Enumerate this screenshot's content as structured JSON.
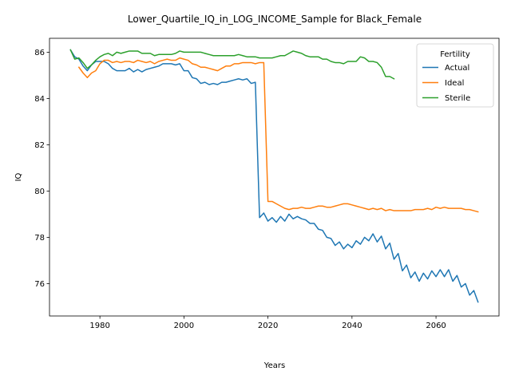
{
  "chart_data": {
    "type": "line",
    "title": "Lower_Quartile_IQ_in_LOG_INCOME_Sample for Black_Female",
    "xlabel": "Years",
    "ylabel": "IQ",
    "xlim": [
      1968,
      2075
    ],
    "ylim": [
      74.6,
      86.6
    ],
    "xticks": [
      1980,
      2000,
      2020,
      2040,
      2060
    ],
    "yticks": [
      76,
      78,
      80,
      82,
      84,
      86
    ],
    "grid": false,
    "legend": {
      "title": "Fertility",
      "placement": "top-right"
    },
    "series": [
      {
        "name": "Actual",
        "color": "#1f77b4",
        "x": [
          1973,
          1974,
          1975,
          1976,
          1977,
          1978,
          1979,
          1980,
          1981,
          1982,
          1983,
          1984,
          1985,
          1986,
          1987,
          1988,
          1989,
          1990,
          1991,
          1992,
          1993,
          1994,
          1995,
          1996,
          1997,
          1998,
          1999,
          2000,
          2001,
          2002,
          2003,
          2004,
          2005,
          2006,
          2007,
          2008,
          2009,
          2010,
          2011,
          2012,
          2013,
          2014,
          2015,
          2016,
          2017,
          2018,
          2019,
          2020,
          2021,
          2022,
          2023,
          2024,
          2025,
          2026,
          2027,
          2028,
          2029,
          2030,
          2031,
          2032,
          2033,
          2034,
          2035,
          2036,
          2037,
          2038,
          2039,
          2040,
          2041,
          2042,
          2043,
          2044,
          2045,
          2046,
          2047,
          2048,
          2049,
          2050,
          2051,
          2052,
          2053,
          2054,
          2055,
          2056,
          2057,
          2058,
          2059,
          2060,
          2061,
          2062,
          2063,
          2064,
          2065,
          2066,
          2067,
          2068,
          2069,
          2070
        ],
        "y": [
          86.1,
          85.8,
          85.7,
          85.4,
          85.2,
          85.45,
          85.6,
          85.6,
          85.6,
          85.5,
          85.3,
          85.2,
          85.2,
          85.2,
          85.3,
          85.15,
          85.25,
          85.15,
          85.25,
          85.3,
          85.35,
          85.4,
          85.5,
          85.5,
          85.5,
          85.45,
          85.5,
          85.2,
          85.2,
          84.9,
          84.85,
          84.65,
          84.7,
          84.6,
          84.65,
          84.6,
          84.7,
          84.7,
          84.75,
          84.8,
          84.85,
          84.8,
          84.85,
          84.65,
          84.7,
          78.85,
          79.05,
          78.7,
          78.85,
          78.65,
          78.9,
          78.7,
          79.0,
          78.8,
          78.9,
          78.8,
          78.75,
          78.6,
          78.6,
          78.35,
          78.3,
          78.0,
          77.95,
          77.65,
          77.8,
          77.5,
          77.7,
          77.55,
          77.85,
          77.7,
          78.0,
          77.85,
          78.15,
          77.8,
          78.05,
          77.5,
          77.75,
          77.05,
          77.3,
          76.55,
          76.8,
          76.25,
          76.5,
          76.1,
          76.45,
          76.2,
          76.55,
          76.3,
          76.6,
          76.3,
          76.6,
          76.1,
          76.35,
          75.85,
          76.0,
          75.5,
          75.7,
          75.2
        ]
      },
      {
        "name": "Ideal",
        "color": "#ff7f0e",
        "x": [
          1975,
          1976,
          1977,
          1978,
          1979,
          1980,
          1981,
          1982,
          1983,
          1984,
          1985,
          1986,
          1987,
          1988,
          1989,
          1990,
          1991,
          1992,
          1993,
          1994,
          1995,
          1996,
          1997,
          1998,
          1999,
          2000,
          2001,
          2002,
          2003,
          2004,
          2005,
          2006,
          2007,
          2008,
          2009,
          2010,
          2011,
          2012,
          2013,
          2014,
          2015,
          2016,
          2017,
          2018,
          2019,
          2020,
          2021,
          2022,
          2023,
          2024,
          2025,
          2026,
          2027,
          2028,
          2029,
          2030,
          2031,
          2032,
          2033,
          2034,
          2035,
          2036,
          2037,
          2038,
          2039,
          2040,
          2041,
          2042,
          2043,
          2044,
          2045,
          2046,
          2047,
          2048,
          2049,
          2050,
          2051,
          2052,
          2053,
          2054,
          2055,
          2056,
          2057,
          2058,
          2059,
          2060,
          2061,
          2062,
          2063,
          2064,
          2065,
          2066,
          2067,
          2068,
          2069,
          2070
        ],
        "y": [
          85.35,
          85.1,
          84.9,
          85.1,
          85.2,
          85.5,
          85.65,
          85.65,
          85.55,
          85.6,
          85.55,
          85.6,
          85.6,
          85.55,
          85.65,
          85.6,
          85.55,
          85.6,
          85.5,
          85.6,
          85.65,
          85.7,
          85.65,
          85.65,
          85.75,
          85.7,
          85.65,
          85.5,
          85.45,
          85.35,
          85.35,
          85.3,
          85.25,
          85.2,
          85.3,
          85.4,
          85.4,
          85.5,
          85.5,
          85.55,
          85.55,
          85.55,
          85.5,
          85.55,
          85.55,
          79.55,
          79.55,
          79.45,
          79.35,
          79.25,
          79.2,
          79.25,
          79.25,
          79.3,
          79.25,
          79.25,
          79.3,
          79.35,
          79.35,
          79.3,
          79.3,
          79.35,
          79.4,
          79.45,
          79.45,
          79.4,
          79.35,
          79.3,
          79.25,
          79.2,
          79.25,
          79.2,
          79.25,
          79.15,
          79.2,
          79.15,
          79.15,
          79.15,
          79.15,
          79.15,
          79.2,
          79.2,
          79.2,
          79.25,
          79.2,
          79.3,
          79.25,
          79.3,
          79.25,
          79.25,
          79.25,
          79.25,
          79.2,
          79.2,
          79.15,
          79.1
        ]
      },
      {
        "name": "Sterile",
        "color": "#2ca02c",
        "x": [
          1973,
          1974,
          1975,
          1976,
          1977,
          1978,
          1979,
          1980,
          1981,
          1982,
          1983,
          1984,
          1985,
          1986,
          1987,
          1988,
          1989,
          1990,
          1991,
          1992,
          1993,
          1994,
          1995,
          1996,
          1997,
          1998,
          1999,
          2000,
          2001,
          2002,
          2003,
          2004,
          2005,
          2006,
          2007,
          2008,
          2009,
          2010,
          2011,
          2012,
          2013,
          2014,
          2015,
          2016,
          2017,
          2018,
          2019,
          2020,
          2021,
          2022,
          2023,
          2024,
          2025,
          2026,
          2027,
          2028,
          2029,
          2030,
          2031,
          2032,
          2033,
          2034,
          2035,
          2036,
          2037,
          2038,
          2039,
          2040,
          2041,
          2042,
          2043,
          2044,
          2045,
          2046,
          2047,
          2048,
          2049,
          2050
        ],
        "y": [
          86.1,
          85.7,
          85.75,
          85.55,
          85.3,
          85.45,
          85.65,
          85.8,
          85.9,
          85.95,
          85.85,
          86.0,
          85.95,
          86.0,
          86.05,
          86.05,
          86.05,
          85.95,
          85.95,
          85.95,
          85.85,
          85.9,
          85.9,
          85.9,
          85.9,
          85.95,
          86.05,
          86.0,
          86.0,
          86.0,
          86.0,
          86.0,
          85.95,
          85.9,
          85.85,
          85.85,
          85.85,
          85.85,
          85.85,
          85.85,
          85.9,
          85.85,
          85.8,
          85.8,
          85.8,
          85.75,
          85.75,
          85.75,
          85.75,
          85.8,
          85.85,
          85.85,
          85.95,
          86.05,
          86.0,
          85.95,
          85.85,
          85.8,
          85.8,
          85.8,
          85.7,
          85.7,
          85.6,
          85.55,
          85.55,
          85.5,
          85.6,
          85.6,
          85.6,
          85.8,
          85.75,
          85.6,
          85.6,
          85.55,
          85.35,
          84.95,
          84.95,
          84.85
        ]
      }
    ]
  }
}
